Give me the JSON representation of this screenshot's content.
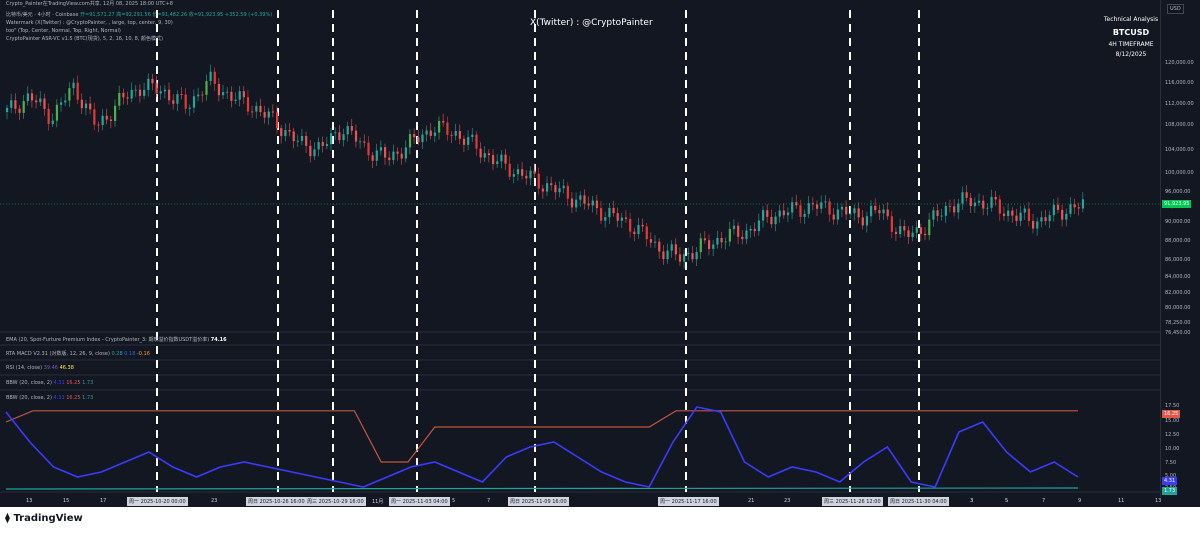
{
  "header": {
    "published_by": "Crypto_Painter在TradingView.com共享, 12月 08, 2025 18:00 UTC+8",
    "symbol_line": "比特币/美元 · 4小时 · Coinbase",
    "ohlc": "开=91,571.27  高=92,291.56  低=91,482.26  收=91,923.95  +352.59 (+0.39%)",
    "watermark_line": "Watermark (X(Twitter) : @CryptoPainter, , large, top, center, 9, 30)",
    "too_line": "too\" (Top, Center, Normal, Top, Right, Normal)",
    "asr_line": "CryptoPainter ASR-VC v1.5 (BTC(現货), 5, 2, 16, 10, 8, 颜色模式)"
  },
  "watermark": "X(Twitter) : @CryptoPainter",
  "title_block": {
    "line1": "Technical Analysis",
    "line2": "BTCUSD",
    "line3": "4H TIMEFRAME",
    "line4": "8/12/2025"
  },
  "currency": "USD",
  "price_axis": [
    "120,000.00",
    "116,000.00",
    "112,000.00",
    "108,000.00",
    "104,000.00",
    "100,000.00",
    "96,000.00",
    "94,000.00",
    "90,000.00",
    "88,000.00",
    "86,000.00",
    "84,000.00",
    "82,000.00",
    "80,000.00",
    "78,250.00",
    "76,450.00"
  ],
  "price_tag": {
    "value": "91,923.95",
    "color": "#00c853"
  },
  "indicators": {
    "ema": "EMA (20, Spot-Furture Premium Index - CryptoPainter_3: 期现溢价指数USDT溢价率)",
    "ema_val": "74.16",
    "macd": "RTA MACD V2.31 (对数版, 12, 26, 9, close)",
    "macd_vals": [
      "0.28",
      "0.18",
      "-0.16"
    ],
    "rsi": "RSI (14, close)",
    "rsi_vals": [
      "39.46",
      "46.38"
    ],
    "bbw1": "BBW (20, close, 2)",
    "bbw1_vals": [
      "4.31",
      "16.25",
      "1.73"
    ],
    "bbw2": "BBW (20, close, 2)",
    "bbw2_vals": [
      "4.31",
      "16.25",
      "1.73"
    ]
  },
  "bbw_axis": [
    "17.50",
    "15.00",
    "12.50",
    "10.00",
    "7.50",
    "5.00",
    "2.50"
  ],
  "bbw_tags": [
    {
      "value": "16.25",
      "color": "#e0584a"
    },
    {
      "value": "4.31",
      "color": "#3b3bff"
    },
    {
      "value": "1.73",
      "color": "#1fa39a"
    }
  ],
  "time_axis": {
    "ticks": [
      "13",
      "15",
      "17",
      "23",
      "11月",
      "5",
      "7",
      "3",
      "5",
      "21",
      "23",
      "3",
      "5",
      "7",
      "9",
      "11",
      "13"
    ],
    "highlights": [
      "周一 2025-10-20  00:00",
      "周日 2025-10-26  16:00",
      "周三 2025-10-29  16:00",
      "周一 2025-11-03  04:00",
      "周日 2025-11-09  16:00",
      "周一 2025-11-17  16:00",
      "周三 2025-11-26  12:00",
      "周日 2025-11-30  04:00"
    ]
  },
  "footer": {
    "brand": "TradingView"
  },
  "colors": {
    "up": "#26a69a",
    "down": "#ef5350",
    "accent_up": "#4caf50",
    "accent_down": "#e53935",
    "bbw": "#3b3bff",
    "bbw_high": "#c0563f",
    "bbw_low": "#1fa39a"
  },
  "chart_data": {
    "type": "line",
    "title": "",
    "series": [
      {
        "values": [
          110,
          113,
          109,
          115,
          107,
          112,
          115,
          114,
          111,
          116,
          113,
          111,
          108,
          104,
          103,
          107,
          103,
          101,
          104,
          107,
          106,
          103,
          100,
          98,
          96,
          94,
          92,
          90,
          88,
          84,
          82,
          84,
          86,
          87,
          90,
          91,
          92,
          91,
          90,
          91,
          86,
          88,
          92,
          93,
          92,
          90,
          89,
          91,
          92
        ]
      },
      {
        "values": [
          14,
          16.25,
          16.25,
          16.25,
          16.25,
          16.25,
          16.25,
          16.25,
          16.25,
          16.25,
          16.25,
          16.25,
          16.25,
          16.25,
          6,
          6,
          13,
          13,
          13,
          13,
          13,
          13,
          13,
          13,
          13,
          16.25,
          16.25,
          16.25,
          16.25,
          16.25,
          16.25,
          16.25,
          16.25,
          16.25,
          16.25,
          16.25,
          16.25,
          16.25,
          16.25,
          16.25,
          16.25
        ]
      },
      {
        "values": [
          16,
          10,
          5,
          3,
          4,
          6,
          8,
          5,
          3,
          5,
          6,
          5,
          4,
          3,
          2,
          1,
          3,
          5,
          6,
          4,
          2,
          7,
          9,
          10,
          7,
          4,
          2,
          1,
          10,
          17,
          16,
          6,
          3,
          5,
          4,
          2,
          6,
          9,
          2,
          1,
          12,
          14,
          8,
          4,
          6,
          3
        ]
      }
    ]
  }
}
